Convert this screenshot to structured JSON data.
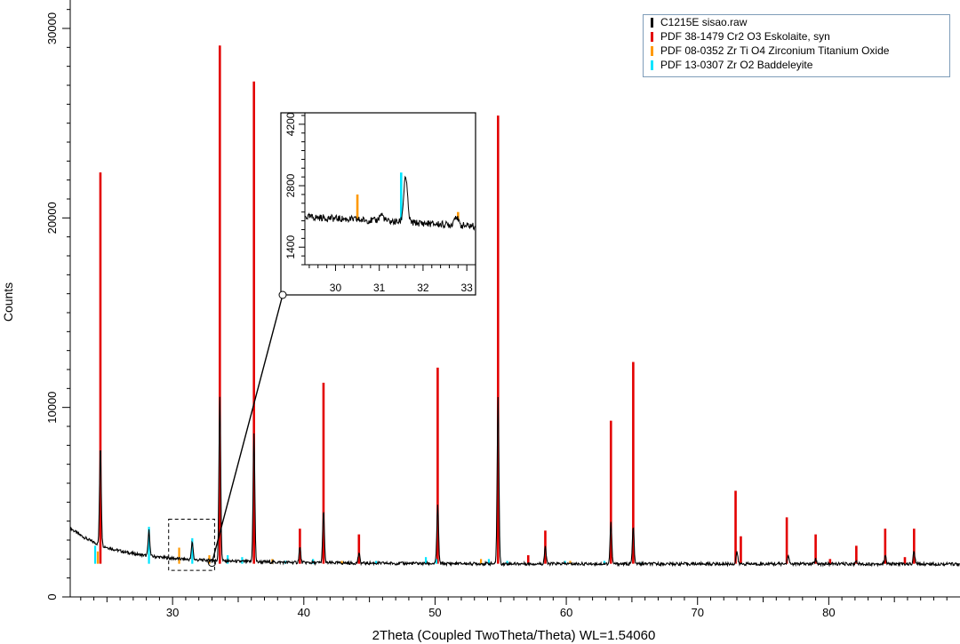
{
  "chart_data": {
    "type": "line",
    "xlabel": "2Theta (Coupled TwoTheta/Theta) WL=1.54060",
    "ylabel": "Counts",
    "xlim": [
      22.2,
      90.0
    ],
    "ylim": [
      0,
      31500
    ],
    "x_ticks": [
      30,
      40,
      50,
      60,
      70,
      80
    ],
    "y_ticks": [
      0,
      10000,
      20000,
      30000
    ],
    "legend": [
      {
        "label": "C1215E sisao.raw",
        "color": "#000000"
      },
      {
        "label": "PDF 38-1479 Cr2 O3 Eskolaite, syn",
        "color": "#e30000"
      },
      {
        "label": "PDF 08-0352 Zr Ti O4 Zirconium Titanium Oxide",
        "color": "#ff9900"
      },
      {
        "label": "PDF 13-0307 Zr O2 Baddeleyite",
        "color": "#00e5ff"
      }
    ],
    "measured_peaks": [
      {
        "x": 24.5,
        "y": 8000
      },
      {
        "x": 28.2,
        "y": 3500
      },
      {
        "x": 31.5,
        "y": 2900
      },
      {
        "x": 33.6,
        "y": 10500
      },
      {
        "x": 36.2,
        "y": 8600
      },
      {
        "x": 39.7,
        "y": 2600
      },
      {
        "x": 41.5,
        "y": 4600
      },
      {
        "x": 44.2,
        "y": 2300
      },
      {
        "x": 50.2,
        "y": 4800
      },
      {
        "x": 54.8,
        "y": 10500
      },
      {
        "x": 58.4,
        "y": 2700
      },
      {
        "x": 63.4,
        "y": 3900
      },
      {
        "x": 65.1,
        "y": 3700
      },
      {
        "x": 73.0,
        "y": 2400
      },
      {
        "x": 76.9,
        "y": 2200
      },
      {
        "x": 79.0,
        "y": 2000
      },
      {
        "x": 82.1,
        "y": 1900
      },
      {
        "x": 84.3,
        "y": 2200
      },
      {
        "x": 86.5,
        "y": 2400
      }
    ],
    "reference_lines": {
      "Cr2O3": [
        {
          "x": 24.5,
          "y": 22400
        },
        {
          "x": 33.6,
          "y": 29100
        },
        {
          "x": 36.2,
          "y": 27200
        },
        {
          "x": 39.7,
          "y": 3600
        },
        {
          "x": 41.5,
          "y": 11300
        },
        {
          "x": 44.2,
          "y": 3300
        },
        {
          "x": 50.2,
          "y": 12100
        },
        {
          "x": 54.8,
          "y": 25400
        },
        {
          "x": 57.1,
          "y": 2200
        },
        {
          "x": 58.4,
          "y": 3500
        },
        {
          "x": 63.4,
          "y": 9300
        },
        {
          "x": 65.1,
          "y": 12400
        },
        {
          "x": 72.9,
          "y": 5600
        },
        {
          "x": 73.3,
          "y": 3200
        },
        {
          "x": 76.8,
          "y": 4200
        },
        {
          "x": 79.0,
          "y": 3300
        },
        {
          "x": 80.1,
          "y": 2000
        },
        {
          "x": 82.1,
          "y": 2700
        },
        {
          "x": 84.3,
          "y": 3600
        },
        {
          "x": 85.8,
          "y": 2100
        },
        {
          "x": 86.5,
          "y": 3600
        }
      ],
      "ZrTiO4": [
        {
          "x": 24.3,
          "y": 2400
        },
        {
          "x": 30.5,
          "y": 2600
        },
        {
          "x": 32.8,
          "y": 2200
        },
        {
          "x": 37.6,
          "y": 2000
        },
        {
          "x": 42.9,
          "y": 1900
        },
        {
          "x": 53.5,
          "y": 2000
        },
        {
          "x": 60.3,
          "y": 1900
        }
      ],
      "ZrO2": [
        {
          "x": 24.1,
          "y": 2700
        },
        {
          "x": 28.2,
          "y": 3700
        },
        {
          "x": 31.5,
          "y": 3100
        },
        {
          "x": 34.2,
          "y": 2200
        },
        {
          "x": 35.3,
          "y": 2100
        },
        {
          "x": 38.6,
          "y": 1900
        },
        {
          "x": 40.7,
          "y": 2000
        },
        {
          "x": 45.5,
          "y": 1900
        },
        {
          "x": 49.3,
          "y": 2100
        },
        {
          "x": 50.1,
          "y": 2000
        },
        {
          "x": 54.1,
          "y": 2000
        },
        {
          "x": 55.5,
          "y": 1900
        },
        {
          "x": 59.9,
          "y": 1900
        },
        {
          "x": 62.9,
          "y": 1900
        },
        {
          "x": 65.7,
          "y": 1800
        }
      ]
    },
    "inset": {
      "xlim": [
        29.3,
        33.2
      ],
      "ylim": [
        1000,
        4400
      ],
      "x_ticks": [
        30,
        31,
        32,
        33
      ],
      "y_ticks": [
        1400,
        2800,
        4200
      ],
      "zoom_region": {
        "xlim": [
          29.7,
          33.2
        ],
        "ylim": [
          1400,
          4100
        ]
      }
    }
  }
}
